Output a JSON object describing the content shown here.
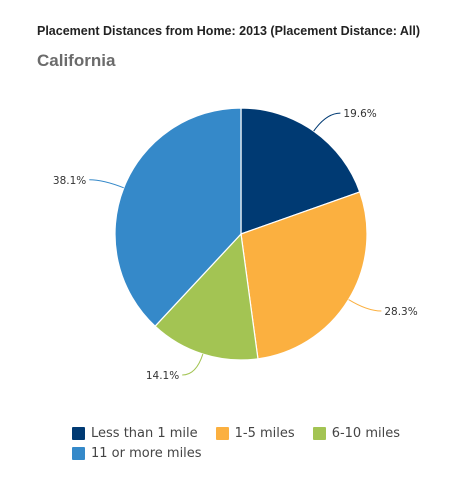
{
  "colors": {
    "less_than_1": "#003a73",
    "one_to_five": "#fbb040",
    "six_to_ten": "#a3c453",
    "eleven_plus": "#3589c9"
  },
  "chart_data": {
    "type": "pie",
    "title": "Placement Distances from Home: 2013 (Placement Distance: All)",
    "subtitle": "California",
    "legend_position": "bottom",
    "slices": [
      {
        "name": "Less than 1 mile",
        "value": 19.6,
        "label": "19.6%",
        "color": "#003a73"
      },
      {
        "name": "1-5 miles",
        "value": 28.3,
        "label": "28.3%",
        "color": "#fbb040"
      },
      {
        "name": "6-10 miles",
        "value": 14.1,
        "label": "14.1%",
        "color": "#a3c453"
      },
      {
        "name": "11 or more miles",
        "value": 38.1,
        "label": "38.1%",
        "color": "#3589c9"
      }
    ]
  }
}
